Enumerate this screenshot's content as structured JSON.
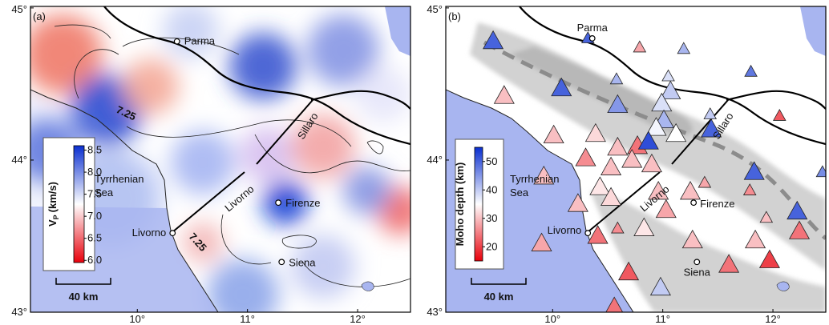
{
  "map": {
    "lonlim": [
      9.03,
      12.48
    ],
    "latlim": [
      43,
      45.01
    ],
    "lonticks": [
      {
        "value": 10,
        "label": "10°"
      },
      {
        "value": 11,
        "label": "11°"
      },
      {
        "value": 12,
        "label": "12°"
      }
    ],
    "latticks": [
      {
        "value": 45,
        "label": "45°"
      },
      {
        "value": 44,
        "label": "44°"
      },
      {
        "value": 43,
        "label": "43°"
      }
    ]
  },
  "panels": [
    {
      "label": "(a)",
      "sea_label": [
        "Tyrrhenian",
        "Sea"
      ],
      "profiles": [
        "Livorno",
        "Sillaro"
      ],
      "scale_bar": "40 km",
      "contour_labels": [
        "7.25",
        "7.25"
      ],
      "cities": [
        {
          "name": "Parma",
          "lon": 10.36,
          "lat": 44.78
        },
        {
          "name": "Livorno",
          "lon": 10.32,
          "lat": 43.52
        },
        {
          "name": "Firenze",
          "lon": 11.28,
          "lat": 43.72
        },
        {
          "name": "Siena",
          "lon": 11.31,
          "lat": 43.33
        }
      ],
      "colorbar": {
        "title": {
          "main": "V",
          "sub": "P",
          "unit": "(km/s)"
        },
        "lim": [
          5.95,
          8.6
        ],
        "colors": [
          "#e8000b",
          "#ffffff",
          "#0a2fd0"
        ],
        "ticks": [
          8.5,
          {
            "value": 8,
            "label": "8.0"
          },
          7.5,
          {
            "value": 7,
            "label": "7.0"
          },
          6.5,
          {
            "value": 6,
            "label": "6.0"
          }
        ]
      }
    },
    {
      "label": "(b)",
      "sea_label": [
        "Tyrrhenian",
        "Sea"
      ],
      "profiles": [
        "Livorno",
        "Sillaro"
      ],
      "scale_bar": "40 km",
      "cities": [
        {
          "name": "Parma",
          "lon": 10.36,
          "lat": 44.8
        },
        {
          "name": "Livorno",
          "lon": 10.32,
          "lat": 43.52
        },
        {
          "name": "Firenze",
          "lon": 11.28,
          "lat": 43.72
        },
        {
          "name": "Siena",
          "lon": 11.31,
          "lat": 43.33
        }
      ],
      "colorbar": {
        "title": "Moho depth (km)",
        "lim": [
          15,
          55
        ],
        "colors": [
          "#e8000b",
          "#ffffff",
          "#0a2fd0"
        ],
        "ticks": [
          50,
          40,
          30,
          20
        ]
      },
      "stations": [
        {
          "lon": 9.46,
          "lat": 44.78,
          "depth": 50
        },
        {
          "lon": 10.32,
          "lat": 44.8,
          "depth": 50
        },
        {
          "lon": 10.79,
          "lat": 44.74,
          "depth": 28
        },
        {
          "lon": 11.19,
          "lat": 44.73,
          "depth": 42
        },
        {
          "lon": 11.8,
          "lat": 44.58,
          "depth": 48
        },
        {
          "lon": 10.08,
          "lat": 44.47,
          "depth": 50
        },
        {
          "lon": 9.56,
          "lat": 44.42,
          "depth": 30
        },
        {
          "lon": 10.58,
          "lat": 44.53,
          "depth": 42
        },
        {
          "lon": 11.05,
          "lat": 44.55,
          "depth": 38
        },
        {
          "lon": 10.59,
          "lat": 44.36,
          "depth": 45
        },
        {
          "lon": 11.07,
          "lat": 44.45,
          "depth": 40
        },
        {
          "lon": 10.99,
          "lat": 44.37,
          "depth": 38
        },
        {
          "lon": 11.01,
          "lat": 44.26,
          "depth": 42
        },
        {
          "lon": 11.43,
          "lat": 44.3,
          "depth": 40
        },
        {
          "lon": 12.06,
          "lat": 44.29,
          "depth": 22
        },
        {
          "lon": 10.01,
          "lat": 44.16,
          "depth": 30
        },
        {
          "lon": 10.39,
          "lat": 44.17,
          "depth": 32
        },
        {
          "lon": 10.94,
          "lat": 44.21,
          "depth": 36
        },
        {
          "lon": 11.12,
          "lat": 44.17,
          "depth": 35
        },
        {
          "lon": 11.44,
          "lat": 44.2,
          "depth": 50
        },
        {
          "lon": 10.3,
          "lat": 44.01,
          "depth": 26
        },
        {
          "lon": 10.59,
          "lat": 44.08,
          "depth": 30
        },
        {
          "lon": 10.77,
          "lat": 44.09,
          "depth": 24
        },
        {
          "lon": 10.87,
          "lat": 44.12,
          "depth": 52
        },
        {
          "lon": 10.72,
          "lat": 44.0,
          "depth": 30
        },
        {
          "lon": 10.53,
          "lat": 43.95,
          "depth": 30
        },
        {
          "lon": 10.9,
          "lat": 43.97,
          "depth": 30
        },
        {
          "lon": 11.83,
          "lat": 43.92,
          "depth": 50
        },
        {
          "lon": 9.92,
          "lat": 43.89,
          "depth": 30
        },
        {
          "lon": 10.43,
          "lat": 43.82,
          "depth": 33
        },
        {
          "lon": 10.53,
          "lat": 43.75,
          "depth": 32
        },
        {
          "lon": 10.96,
          "lat": 43.79,
          "depth": 30
        },
        {
          "lon": 11.25,
          "lat": 43.79,
          "depth": 30
        },
        {
          "lon": 11.38,
          "lat": 43.85,
          "depth": 28
        },
        {
          "lon": 11.79,
          "lat": 43.8,
          "depth": 26
        },
        {
          "lon": 10.23,
          "lat": 43.71,
          "depth": 30
        },
        {
          "lon": 11.03,
          "lat": 43.67,
          "depth": 28
        },
        {
          "lon": 11.94,
          "lat": 43.62,
          "depth": 30
        },
        {
          "lon": 12.22,
          "lat": 43.66,
          "depth": 50
        },
        {
          "lon": 12.24,
          "lat": 43.53,
          "depth": 24
        },
        {
          "lon": 9.9,
          "lat": 43.45,
          "depth": 28
        },
        {
          "lon": 10.41,
          "lat": 43.5,
          "depth": 24
        },
        {
          "lon": 10.59,
          "lat": 43.55,
          "depth": 26
        },
        {
          "lon": 10.83,
          "lat": 43.55,
          "depth": 33
        },
        {
          "lon": 11.27,
          "lat": 43.47,
          "depth": 30
        },
        {
          "lon": 11.84,
          "lat": 43.47,
          "depth": 30
        },
        {
          "lon": 11.97,
          "lat": 43.34,
          "depth": 20
        },
        {
          "lon": 11.6,
          "lat": 43.31,
          "depth": 24
        },
        {
          "lon": 10.69,
          "lat": 43.26,
          "depth": 22
        },
        {
          "lon": 10.98,
          "lat": 43.16,
          "depth": 40
        },
        {
          "lon": 10.56,
          "lat": 43.03,
          "depth": 24
        },
        {
          "lon": 12.45,
          "lat": 43.92,
          "depth": 46
        }
      ]
    }
  ]
}
